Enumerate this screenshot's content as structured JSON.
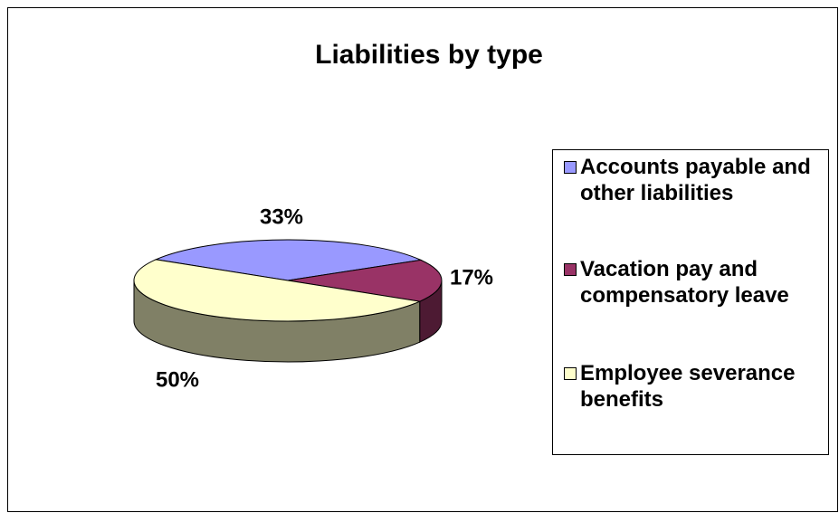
{
  "chart_data": {
    "type": "pie",
    "title": "Liabilities by type",
    "categories": [
      "Accounts payable and other liabilities",
      "Vacation pay and compensatory leave",
      "Employee severance benefits"
    ],
    "values": [
      33,
      17,
      50
    ],
    "value_labels": [
      "33%",
      "17%",
      "50%"
    ],
    "colors": [
      "#9999ff",
      "#993366",
      "#ffffcc"
    ]
  }
}
